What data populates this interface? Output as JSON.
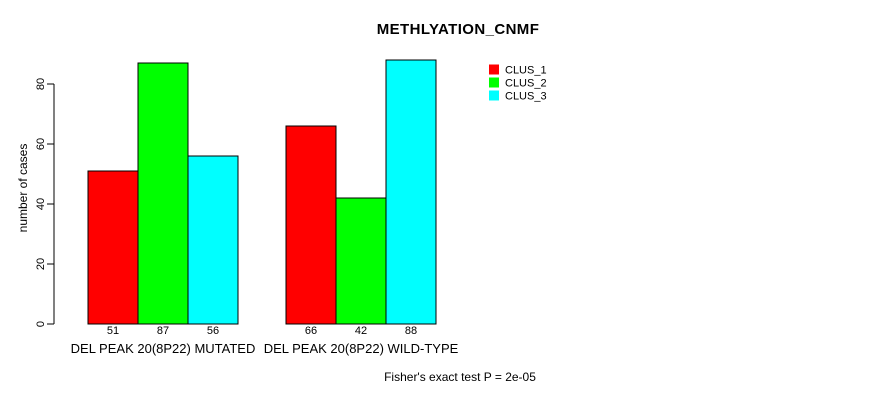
{
  "chart_data": {
    "type": "bar",
    "title": "METHLYATION_CNMF",
    "xlabel": "",
    "ylabel": "number of cases",
    "ylim": [
      0,
      88
    ],
    "yticks": [
      0,
      20,
      40,
      60,
      80
    ],
    "grid": false,
    "legend_position": "top-right",
    "bar_value_labels_shown": true,
    "annotation": "Fisher's exact test P = 2e-05",
    "categories": [
      "DEL PEAK 20(8P22) MUTATED",
      "DEL PEAK 20(8P22) WILD-TYPE"
    ],
    "series": [
      {
        "name": "CLUS_1",
        "color": "#ff0000",
        "values": [
          51,
          66
        ]
      },
      {
        "name": "CLUS_2",
        "color": "#00ff00",
        "values": [
          87,
          42
        ]
      },
      {
        "name": "CLUS_3",
        "color": "#00ffff",
        "values": [
          56,
          88
        ]
      }
    ]
  },
  "legend": {
    "items": [
      {
        "label": "CLUS_1",
        "color": "#ff0000"
      },
      {
        "label": "CLUS_2",
        "color": "#00ff00"
      },
      {
        "label": "CLUS_3",
        "color": "#00ffff"
      }
    ]
  },
  "colors": {
    "background": "#ffffff",
    "axis": "#000000",
    "bar_border": "#000000",
    "text": "#000000"
  }
}
